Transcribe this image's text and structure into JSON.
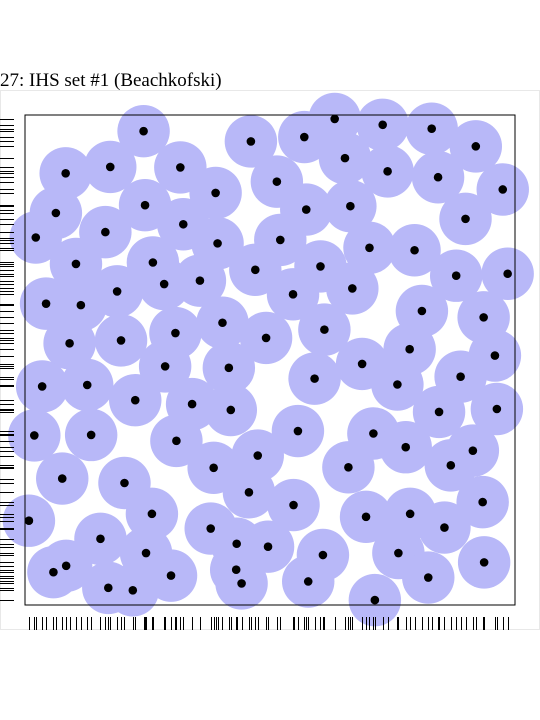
{
  "chart_data": {
    "type": "scatter",
    "title": "27: IHS set #1 (Beachkofski)",
    "xlabel": "",
    "ylabel": "",
    "xlim": [
      0,
      1
    ],
    "ylim": [
      0,
      1
    ],
    "grid": false,
    "marker_color": "#000000",
    "disc_color": "#b8b8f8",
    "disc_radius": 0.0535,
    "points": [
      [
        0.242,
        0.967
      ],
      [
        0.317,
        0.893
      ],
      [
        0.461,
        0.946
      ],
      [
        0.57,
        0.955
      ],
      [
        0.632,
        0.992
      ],
      [
        0.73,
        0.98
      ],
      [
        0.83,
        0.972
      ],
      [
        0.92,
        0.936
      ],
      [
        0.083,
        0.881
      ],
      [
        0.174,
        0.894
      ],
      [
        0.653,
        0.912
      ],
      [
        0.74,
        0.885
      ],
      [
        0.843,
        0.873
      ],
      [
        0.514,
        0.864
      ],
      [
        0.389,
        0.841
      ],
      [
        0.975,
        0.848
      ],
      [
        0.245,
        0.816
      ],
      [
        0.063,
        0.8
      ],
      [
        0.574,
        0.807
      ],
      [
        0.664,
        0.814
      ],
      [
        0.899,
        0.788
      ],
      [
        0.164,
        0.761
      ],
      [
        0.323,
        0.777
      ],
      [
        0.393,
        0.738
      ],
      [
        0.521,
        0.745
      ],
      [
        0.022,
        0.75
      ],
      [
        0.795,
        0.724
      ],
      [
        0.284,
        0.655
      ],
      [
        0.703,
        0.729
      ],
      [
        0.104,
        0.696
      ],
      [
        0.261,
        0.699
      ],
      [
        0.47,
        0.684
      ],
      [
        0.603,
        0.691
      ],
      [
        0.985,
        0.676
      ],
      [
        0.88,
        0.672
      ],
      [
        0.357,
        0.662
      ],
      [
        0.668,
        0.646
      ],
      [
        0.188,
        0.64
      ],
      [
        0.043,
        0.615
      ],
      [
        0.114,
        0.612
      ],
      [
        0.547,
        0.634
      ],
      [
        0.81,
        0.6
      ],
      [
        0.936,
        0.587
      ],
      [
        0.307,
        0.555
      ],
      [
        0.403,
        0.576
      ],
      [
        0.611,
        0.562
      ],
      [
        0.091,
        0.534
      ],
      [
        0.196,
        0.54
      ],
      [
        0.492,
        0.545
      ],
      [
        0.785,
        0.522
      ],
      [
        0.959,
        0.509
      ],
      [
        0.286,
        0.487
      ],
      [
        0.416,
        0.484
      ],
      [
        0.688,
        0.492
      ],
      [
        0.889,
        0.466
      ],
      [
        0.035,
        0.446
      ],
      [
        0.127,
        0.449
      ],
      [
        0.591,
        0.462
      ],
      [
        0.341,
        0.41
      ],
      [
        0.225,
        0.418
      ],
      [
        0.42,
        0.398
      ],
      [
        0.76,
        0.45
      ],
      [
        0.963,
        0.4
      ],
      [
        0.845,
        0.394
      ],
      [
        0.019,
        0.346
      ],
      [
        0.135,
        0.347
      ],
      [
        0.309,
        0.335
      ],
      [
        0.557,
        0.355
      ],
      [
        0.711,
        0.35
      ],
      [
        0.777,
        0.322
      ],
      [
        0.914,
        0.315
      ],
      [
        0.475,
        0.305
      ],
      [
        0.076,
        0.258
      ],
      [
        0.203,
        0.249
      ],
      [
        0.385,
        0.28
      ],
      [
        0.869,
        0.285
      ],
      [
        0.66,
        0.281
      ],
      [
        0.934,
        0.21
      ],
      [
        0.457,
        0.23
      ],
      [
        0.548,
        0.204
      ],
      [
        0.259,
        0.186
      ],
      [
        0.008,
        0.172
      ],
      [
        0.379,
        0.156
      ],
      [
        0.786,
        0.186
      ],
      [
        0.696,
        0.18
      ],
      [
        0.856,
        0.158
      ],
      [
        0.247,
        0.106
      ],
      [
        0.496,
        0.119
      ],
      [
        0.608,
        0.102
      ],
      [
        0.154,
        0.135
      ],
      [
        0.058,
        0.067
      ],
      [
        0.432,
        0.125
      ],
      [
        0.937,
        0.087
      ],
      [
        0.762,
        0.106
      ],
      [
        0.17,
        0.035
      ],
      [
        0.298,
        0.06
      ],
      [
        0.431,
        0.072
      ],
      [
        0.22,
        0.03
      ],
      [
        0.714,
        0.01
      ],
      [
        0.084,
        0.08
      ],
      [
        0.578,
        0.048
      ],
      [
        0.442,
        0.044
      ],
      [
        0.823,
        0.056
      ]
    ]
  }
}
